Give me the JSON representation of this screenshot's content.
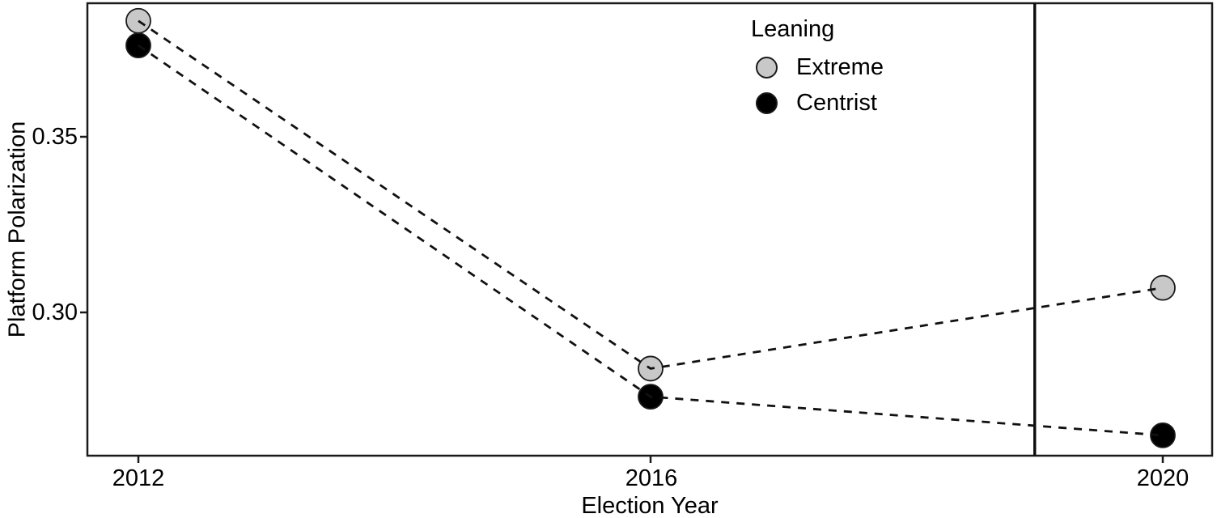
{
  "chart_data": {
    "type": "line",
    "title": "",
    "xlabel": "Election Year",
    "ylabel": "Platform Polarization",
    "categories": [
      2012,
      2016,
      2020
    ],
    "x_tick_labels": [
      "2012",
      "2016",
      "2020"
    ],
    "y_ticks": [
      0.35,
      0.3
    ],
    "y_tick_labels": [
      "0.35",
      "0.30"
    ],
    "xlim": [
      2011.6,
      2020.4
    ],
    "ylim": [
      0.259,
      0.388
    ],
    "grid": "off",
    "line_style": "dashed",
    "series": [
      {
        "name": "Extreme",
        "values": [
          0.383,
          0.284,
          0.307
        ],
        "marker_fill": "#c8c8c8"
      },
      {
        "name": "Centrist",
        "values": [
          0.376,
          0.276,
          0.265
        ],
        "marker_fill": "#000000"
      }
    ],
    "annotations": [
      {
        "type": "vline",
        "x": 2019,
        "style": "solid",
        "color": "#0d0d0d"
      }
    ],
    "legend": {
      "title": "Leaning",
      "position": "inside-top-right",
      "entries": [
        {
          "label": "Extreme",
          "color": "#c8c8c8"
        },
        {
          "label": "Centrist",
          "color": "#000000"
        }
      ]
    },
    "colors": {
      "line": "#111111",
      "marker_stroke": "#1a1a1a",
      "panel_border": "#1a1a1a",
      "background": "#ffffff"
    }
  }
}
